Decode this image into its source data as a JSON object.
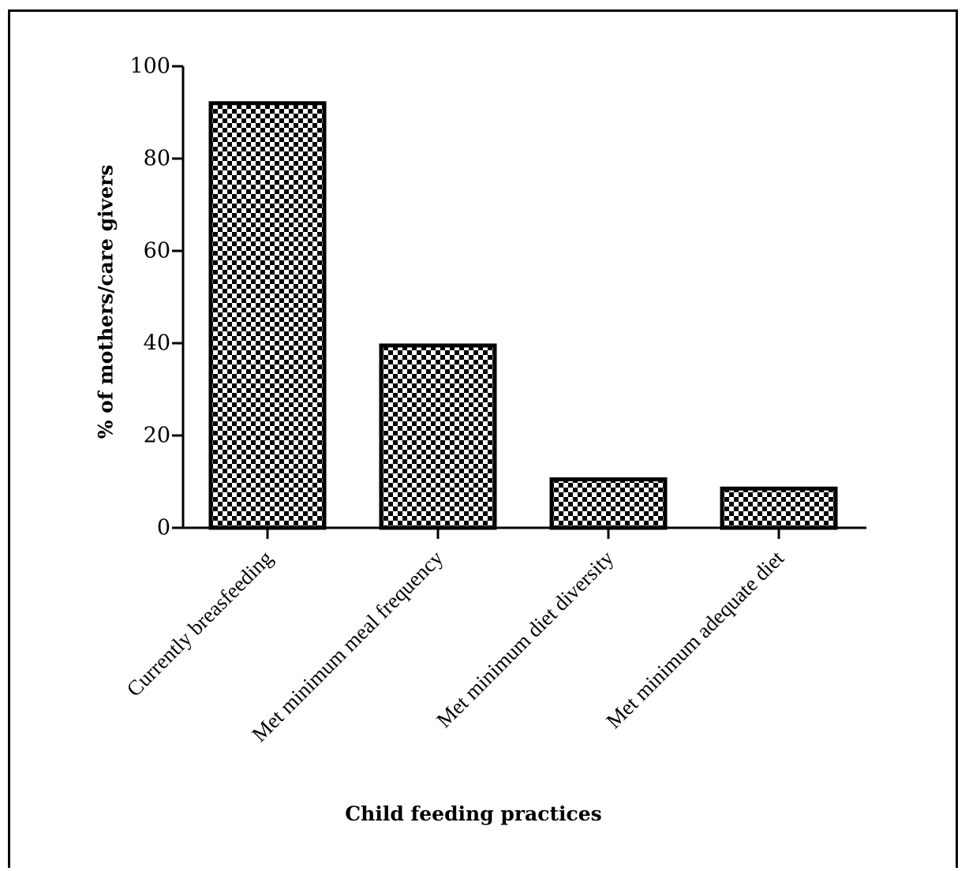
{
  "chart_data": {
    "type": "bar",
    "title": "",
    "xlabel": "Child feeding practices",
    "ylabel": "% of mothers/care givers",
    "categories": [
      "Currently breasfeeding",
      "Met minimum meal frequency",
      "Met minimum diet diversity",
      "Met minimum adequate diet"
    ],
    "values": [
      92,
      39.5,
      10.5,
      8.5
    ],
    "ylim": [
      0,
      100
    ],
    "yticks": [
      0,
      20,
      40,
      60,
      80,
      100
    ],
    "grid": false,
    "bar_pattern": "checkerboard",
    "colors": {
      "bar_fill_dark": "#000000",
      "bar_fill_light": "#ffffff",
      "axis": "#000000"
    }
  }
}
